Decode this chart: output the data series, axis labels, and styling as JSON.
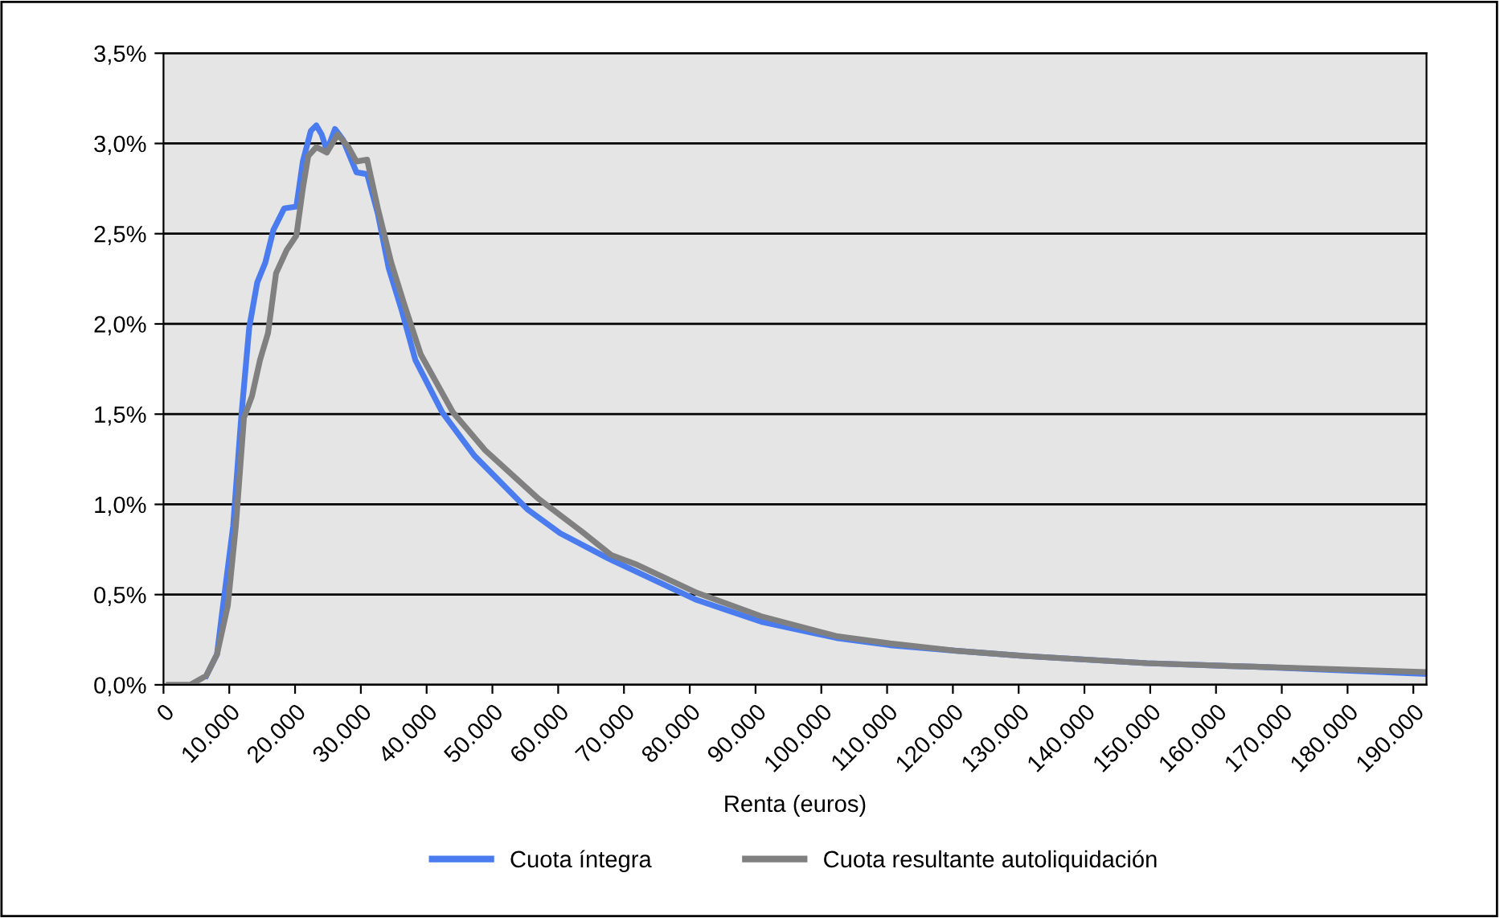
{
  "chart_data": {
    "type": "line",
    "xlabel": "Renta (euros)",
    "xlim": [
      0,
      192000
    ],
    "ylim": [
      0,
      3.5
    ],
    "xticks": [
      {
        "value": 0,
        "label": "0"
      },
      {
        "value": 10000,
        "label": "10.000"
      },
      {
        "value": 20000,
        "label": "20.000"
      },
      {
        "value": 30000,
        "label": "30.000"
      },
      {
        "value": 40000,
        "label": "40.000"
      },
      {
        "value": 50000,
        "label": "50.000"
      },
      {
        "value": 60000,
        "label": "60.000"
      },
      {
        "value": 70000,
        "label": "70.000"
      },
      {
        "value": 80000,
        "label": "80.000"
      },
      {
        "value": 90000,
        "label": "90.000"
      },
      {
        "value": 100000,
        "label": "100.000"
      },
      {
        "value": 110000,
        "label": "110.000"
      },
      {
        "value": 120000,
        "label": "120.000"
      },
      {
        "value": 130000,
        "label": "130.000"
      },
      {
        "value": 140000,
        "label": "140.000"
      },
      {
        "value": 150000,
        "label": "150.000"
      },
      {
        "value": 160000,
        "label": "160.000"
      },
      {
        "value": 170000,
        "label": "170.000"
      },
      {
        "value": 180000,
        "label": "180.000"
      },
      {
        "value": 190000,
        "label": "190.000"
      }
    ],
    "yticks": [
      {
        "value": 0,
        "label": "0,0%"
      },
      {
        "value": 0.5,
        "label": "0,5%"
      },
      {
        "value": 1,
        "label": "1,0%"
      },
      {
        "value": 1.5,
        "label": "1,5%"
      },
      {
        "value": 2,
        "label": "2,0%"
      },
      {
        "value": 2.5,
        "label": "2,5%"
      },
      {
        "value": 3,
        "label": "3,0%"
      },
      {
        "value": 3.5,
        "label": "3,5%"
      }
    ],
    "grid": "y",
    "legend": "bottom",
    "marker": "none",
    "line_style": "solid",
    "series": [
      {
        "name": "Cuota íntegra",
        "color": "#4a7cf0",
        "x": [
          6500,
          8140,
          8950,
          10590,
          11810,
          13030,
          14250,
          15480,
          16700,
          18340,
          20200,
          21180,
          22400,
          23230,
          24040,
          24840,
          26070,
          27290,
          29340,
          30960,
          32590,
          34230,
          36260,
          38290,
          42370,
          47260,
          55400,
          60300,
          67630,
          71710,
          81080,
          90860,
          102270,
          110420,
          120200,
          130800,
          149500,
          165800,
          192000
        ],
        "values": [
          0.05,
          0.17,
          0.41,
          0.88,
          1.48,
          1.98,
          2.23,
          2.34,
          2.52,
          2.64,
          2.65,
          2.9,
          3.07,
          3.1,
          3.05,
          2.96,
          3.08,
          3.02,
          2.84,
          2.83,
          2.61,
          2.31,
          2.07,
          1.8,
          1.51,
          1.27,
          0.97,
          0.84,
          0.7,
          0.63,
          0.47,
          0.35,
          0.26,
          0.22,
          0.19,
          0.16,
          0.12,
          0.1,
          0.06
        ]
      },
      {
        "name": "Cuota resultante autoliquidación",
        "color": "#808080",
        "x": [
          800,
          4060,
          6500,
          8140,
          9780,
          11000,
          12230,
          13450,
          14670,
          15890,
          17110,
          18730,
          20200,
          21180,
          22000,
          23230,
          24840,
          26480,
          28120,
          29340,
          30960,
          32590,
          34620,
          36680,
          39120,
          44000,
          48900,
          57040,
          63570,
          68040,
          71710,
          81080,
          90860,
          102270,
          110420,
          120200,
          130800,
          149500,
          165800,
          192000
        ],
        "values": [
          0,
          0,
          0.05,
          0.17,
          0.44,
          0.88,
          1.48,
          1.6,
          1.8,
          1.95,
          2.28,
          2.41,
          2.49,
          2.75,
          2.93,
          2.98,
          2.95,
          3.05,
          2.98,
          2.9,
          2.91,
          2.64,
          2.34,
          2.1,
          1.83,
          1.51,
          1.3,
          1.03,
          0.85,
          0.72,
          0.67,
          0.51,
          0.38,
          0.27,
          0.23,
          0.19,
          0.16,
          0.12,
          0.1,
          0.07
        ]
      }
    ]
  }
}
